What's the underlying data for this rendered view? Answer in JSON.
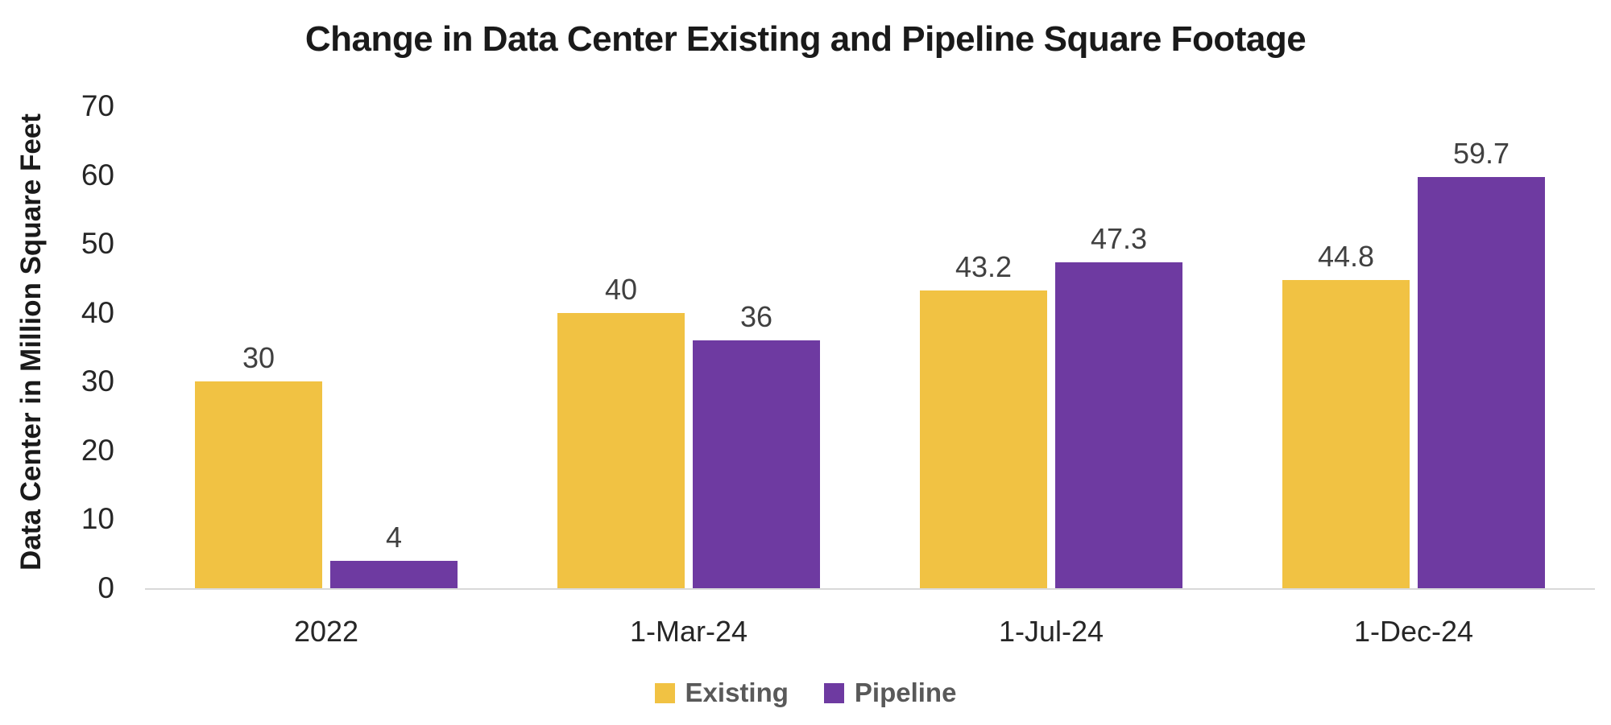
{
  "title": "Change in Data Center Existing and Pipeline Square Footage",
  "colors": {
    "existing": "#F1C243",
    "pipeline": "#6E3AA1",
    "axis_line": "#D9D9D9",
    "data_label": "#404040",
    "tick_label": "#262626",
    "legend_text": "#595959",
    "title_text": "#1A1A1A"
  },
  "chart_data": {
    "type": "bar",
    "title": "Change in Data Center Existing and Pipeline Square Footage",
    "xlabel": "",
    "ylabel": "Data Center in Million Square Feet",
    "categories": [
      "2022",
      "1-Mar-24",
      "1-Jul-24",
      "1-Dec-24"
    ],
    "series": [
      {
        "name": "Existing",
        "color": "#F1C243",
        "values": [
          30,
          40,
          43.2,
          44.8
        ],
        "labels": [
          "30",
          "40",
          "43.2",
          "44.8"
        ]
      },
      {
        "name": "Pipeline",
        "color": "#6E3AA1",
        "values": [
          4,
          36,
          47.3,
          59.7
        ],
        "labels": [
          "4",
          "36",
          "47.3",
          "59.7"
        ]
      }
    ],
    "ylim": [
      0,
      70
    ],
    "yticks": [
      0,
      10,
      20,
      30,
      40,
      50,
      60,
      70
    ],
    "grid": false,
    "legend_position": "bottom",
    "data_labels": true
  },
  "legend": {
    "items": [
      {
        "label": "Existing",
        "color": "#F1C243"
      },
      {
        "label": "Pipeline",
        "color": "#6E3AA1"
      }
    ]
  }
}
